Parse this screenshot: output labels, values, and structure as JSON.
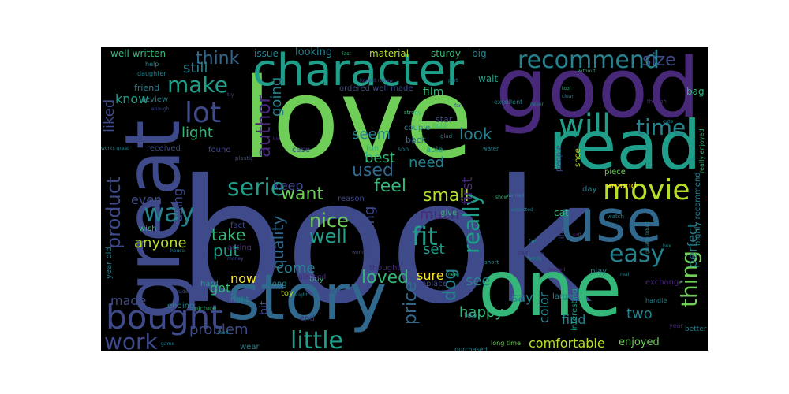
{
  "colors": {
    "background": "#000000",
    "page": "#ffffff",
    "palette": {
      "purple": "#482878",
      "indigo": "#3e4a89",
      "blue": "#31688e",
      "teal": "#26828e",
      "green": "#1f9e89",
      "seagreen": "#35b779",
      "lime": "#6ece58",
      "yellowgreen": "#b5de2b",
      "yellow": "#fde725"
    }
  },
  "words": [
    {
      "text": "book",
      "color": "indigo"
    },
    {
      "text": "love",
      "color": "lime"
    },
    {
      "text": "good",
      "color": "purple"
    },
    {
      "text": "great",
      "color": "indigo"
    },
    {
      "text": "one",
      "color": "seagreen"
    },
    {
      "text": "read",
      "color": "green"
    },
    {
      "text": "character",
      "color": "green"
    },
    {
      "text": "story",
      "color": "blue"
    },
    {
      "text": "use",
      "color": "blue"
    },
    {
      "text": "movie",
      "color": "yellowgreen"
    },
    {
      "text": "bought",
      "color": "indigo"
    },
    {
      "text": "will",
      "color": "green"
    },
    {
      "text": "time",
      "color": "teal"
    },
    {
      "text": "recommend",
      "color": "teal"
    },
    {
      "text": "easy",
      "color": "teal"
    },
    {
      "text": "lot",
      "color": "indigo"
    },
    {
      "text": "serie",
      "color": "green"
    },
    {
      "text": "make",
      "color": "green"
    },
    {
      "text": "size",
      "color": "indigo"
    },
    {
      "text": "way",
      "color": "teal"
    },
    {
      "text": "fit",
      "color": "green"
    },
    {
      "text": "little",
      "color": "green"
    },
    {
      "text": "work",
      "color": "indigo"
    },
    {
      "text": "product",
      "color": "indigo"
    },
    {
      "text": "think",
      "color": "blue"
    },
    {
      "text": "really",
      "color": "green"
    },
    {
      "text": "thing",
      "color": "lime"
    },
    {
      "text": "used",
      "color": "blue"
    },
    {
      "text": "author",
      "color": "purple"
    },
    {
      "text": "loved",
      "color": "seagreen"
    },
    {
      "text": "well",
      "color": "green"
    },
    {
      "text": "nice",
      "color": "lime"
    },
    {
      "text": "small",
      "color": "yellowgreen"
    },
    {
      "text": "want",
      "color": "lime"
    },
    {
      "text": "feel",
      "color": "seagreen"
    },
    {
      "text": "light",
      "color": "seagreen"
    },
    {
      "text": "best",
      "color": "seagreen"
    },
    {
      "text": "need",
      "color": "teal"
    },
    {
      "text": "look",
      "color": "teal"
    },
    {
      "text": "still",
      "color": "teal"
    },
    {
      "text": "know",
      "color": "green"
    },
    {
      "text": "liked",
      "color": "indigo"
    },
    {
      "text": "going",
      "color": "teal"
    },
    {
      "text": "seem",
      "color": "teal"
    },
    {
      "text": "quality",
      "color": "blue"
    },
    {
      "text": "price",
      "color": "blue"
    },
    {
      "text": "comfortable",
      "color": "yellowgreen"
    },
    {
      "text": "happy",
      "color": "seagreen"
    },
    {
      "text": "problem",
      "color": "indigo"
    },
    {
      "text": "dog",
      "color": "teal"
    },
    {
      "text": "see",
      "color": "teal"
    },
    {
      "text": "set",
      "color": "green"
    },
    {
      "text": "much",
      "color": "purple"
    },
    {
      "text": "reading",
      "color": "indigo"
    },
    {
      "text": "first",
      "color": "purple"
    },
    {
      "text": "perfect",
      "color": "teal"
    },
    {
      "text": "two",
      "color": "teal"
    },
    {
      "text": "say",
      "color": "teal"
    },
    {
      "text": "color",
      "color": "teal"
    },
    {
      "text": "find",
      "color": "teal"
    },
    {
      "text": "take",
      "color": "seagreen"
    },
    {
      "text": "put",
      "color": "green"
    },
    {
      "text": "come",
      "color": "teal"
    },
    {
      "text": "anyone",
      "color": "yellowgreen"
    },
    {
      "text": "made",
      "color": "indigo"
    },
    {
      "text": "got",
      "color": "seagreen"
    },
    {
      "text": "now",
      "color": "yellow"
    },
    {
      "text": "even",
      "color": "indigo"
    },
    {
      "text": "using",
      "color": "indigo"
    },
    {
      "text": "keep",
      "color": "indigo"
    },
    {
      "text": "sure",
      "color": "yellow"
    },
    {
      "text": "bit",
      "color": "indigo"
    },
    {
      "text": "enjoyed",
      "color": "lime"
    },
    {
      "text": "well written",
      "color": "seagreen"
    },
    {
      "text": "looking",
      "color": "teal"
    },
    {
      "text": "issue",
      "color": "teal"
    },
    {
      "text": "material",
      "color": "yellowgreen"
    },
    {
      "text": "sturdy",
      "color": "seagreen"
    },
    {
      "text": "big",
      "color": "teal"
    },
    {
      "text": "film",
      "color": "seagreen"
    },
    {
      "text": "ordered well made",
      "color": "indigo"
    },
    {
      "text": "friend",
      "color": "teal"
    },
    {
      "text": "bag",
      "color": "seagreen"
    },
    {
      "text": "wait",
      "color": "green"
    },
    {
      "text": "review",
      "color": "teal"
    },
    {
      "text": "star",
      "color": "indigo"
    },
    {
      "text": "couple",
      "color": "teal"
    },
    {
      "text": "back",
      "color": "blue"
    },
    {
      "text": "able",
      "color": "green"
    },
    {
      "text": "fun",
      "color": "seagreen"
    },
    {
      "text": "found",
      "color": "indigo"
    },
    {
      "text": "case",
      "color": "indigo"
    },
    {
      "text": "received",
      "color": "indigo"
    },
    {
      "text": "people",
      "color": "indigo"
    },
    {
      "text": "piece",
      "color": "lime"
    },
    {
      "text": "day",
      "color": "teal"
    },
    {
      "text": "around",
      "color": "yellow"
    },
    {
      "text": "cat",
      "color": "seagreen"
    },
    {
      "text": "life",
      "color": "indigo"
    },
    {
      "text": "shoe",
      "color": "yellowgreen"
    },
    {
      "text": "give",
      "color": "seagreen"
    },
    {
      "text": "toy",
      "color": "yellowgreen"
    },
    {
      "text": "fact",
      "color": "indigo"
    },
    {
      "text": "acting",
      "color": "purple"
    },
    {
      "text": "reason",
      "color": "indigo"
    },
    {
      "text": "wish",
      "color": "seagreen"
    },
    {
      "text": "year old",
      "color": "teal"
    },
    {
      "text": "thought",
      "color": "purple"
    },
    {
      "text": "replace",
      "color": "indigo"
    },
    {
      "text": "buy",
      "color": "seagreen"
    },
    {
      "text": "purchase",
      "color": "indigo"
    },
    {
      "text": "long",
      "color": "teal"
    },
    {
      "text": "play",
      "color": "teal"
    },
    {
      "text": "interesting",
      "color": "green"
    },
    {
      "text": "large",
      "color": "teal"
    },
    {
      "text": "ending",
      "color": "teal"
    },
    {
      "text": "hard",
      "color": "green"
    },
    {
      "text": "right",
      "color": "teal"
    },
    {
      "text": "end",
      "color": "purple"
    },
    {
      "text": "top",
      "color": "teal"
    },
    {
      "text": "exchange",
      "color": "purple"
    },
    {
      "text": "better",
      "color": "teal"
    },
    {
      "text": "highly recommend",
      "color": "teal"
    },
    {
      "text": "wear",
      "color": "teal"
    },
    {
      "text": "pleased",
      "color": "purple"
    },
    {
      "text": "picture",
      "color": "seagreen"
    },
    {
      "text": "long time",
      "color": "lime"
    },
    {
      "text": "purchased",
      "color": "teal"
    },
    {
      "text": "handle",
      "color": "teal"
    },
    {
      "text": "really enjoyed",
      "color": "seagreen"
    },
    {
      "text": "daughter",
      "color": "teal"
    },
    {
      "text": "help",
      "color": "teal"
    },
    {
      "text": "excellent",
      "color": "teal"
    },
    {
      "text": "honest review",
      "color": "indigo"
    },
    {
      "text": "strong",
      "color": "seagreen"
    },
    {
      "text": "hold",
      "color": "seagreen"
    },
    {
      "text": "glad",
      "color": "teal"
    },
    {
      "text": "son",
      "color": "teal"
    },
    {
      "text": "plastic",
      "color": "indigo"
    },
    {
      "text": "water",
      "color": "teal"
    },
    {
      "text": "money",
      "color": "indigo"
    },
    {
      "text": "house",
      "color": "teal"
    },
    {
      "text": "world",
      "color": "indigo"
    },
    {
      "text": "family",
      "color": "teal"
    },
    {
      "text": "short",
      "color": "teal"
    },
    {
      "text": "needed",
      "color": "purple"
    },
    {
      "text": "pair",
      "color": "purple"
    },
    {
      "text": "bright",
      "color": "teal"
    },
    {
      "text": "watch",
      "color": "teal"
    },
    {
      "text": "tool",
      "color": "seagreen"
    },
    {
      "text": "clean",
      "color": "teal"
    },
    {
      "text": "last",
      "color": "seagreen"
    },
    {
      "text": "wanted",
      "color": "teal"
    },
    {
      "text": "expected",
      "color": "teal"
    },
    {
      "text": "soft",
      "color": "purple"
    },
    {
      "text": "pretty",
      "color": "indigo"
    },
    {
      "text": "food",
      "color": "teal"
    },
    {
      "text": "game",
      "color": "teal"
    },
    {
      "text": "side",
      "color": "indigo"
    },
    {
      "text": "enough",
      "color": "indigo"
    },
    {
      "text": "without",
      "color": "seagreen"
    },
    {
      "text": "year",
      "color": "purple"
    },
    {
      "text": "never",
      "color": "teal"
    },
    {
      "text": "though",
      "color": "purple"
    },
    {
      "text": "great product",
      "color": "teal"
    },
    {
      "text": "real",
      "color": "teal"
    },
    {
      "text": "show",
      "color": "seagreen"
    },
    {
      "text": "new",
      "color": "seagreen"
    },
    {
      "text": "far",
      "color": "indigo"
    },
    {
      "text": "kid",
      "color": "purple"
    },
    {
      "text": "part",
      "color": "teal"
    },
    {
      "text": "item",
      "color": "indigo"
    },
    {
      "text": "try",
      "color": "indigo"
    },
    {
      "text": "cute",
      "color": "teal"
    },
    {
      "text": "fan",
      "color": "teal"
    },
    {
      "text": "box",
      "color": "teal"
    },
    {
      "text": "saw",
      "color": "teal"
    },
    {
      "text": "works great",
      "color": "teal"
    }
  ]
}
